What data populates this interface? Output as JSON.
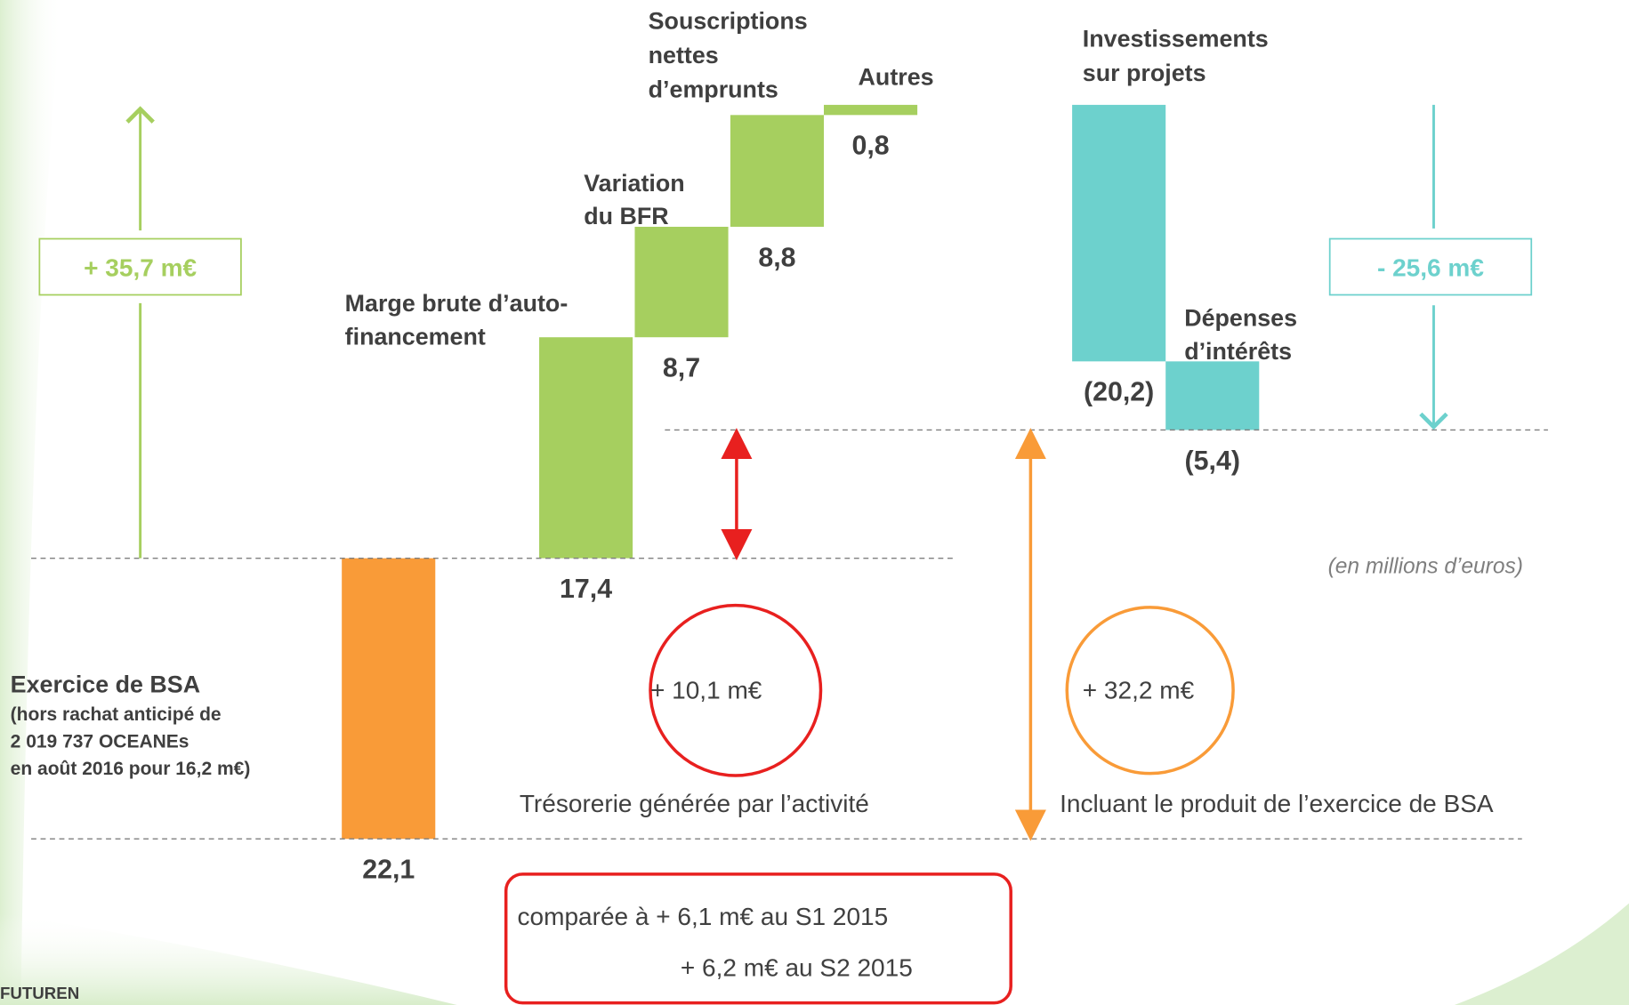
{
  "chart_data": {
    "type": "waterfall",
    "categories": [
      [
        "Exercice de BSA"
      ],
      [
        "Marge brute d’auto-",
        "financement"
      ],
      [
        "Variation",
        "du BFR"
      ],
      [
        "Souscriptions",
        "nettes",
        "d’emprunts"
      ],
      [
        "Autres"
      ],
      [
        "Investissements",
        "sur projets"
      ],
      [
        "Dépenses",
        "d’intérêts"
      ]
    ],
    "category_note": [
      "(hors rachat anticipé de",
      "2 019 737 OCEANEs",
      "en août 2016 pour 16,2 m€)"
    ],
    "values": [
      22.1,
      17.4,
      8.7,
      8.8,
      0.8,
      -20.2,
      -5.4
    ],
    "value_labels": [
      "22,1",
      "17,4",
      "8,7",
      "8,8",
      "0,8",
      "(20,2)",
      "(5,4)"
    ],
    "colors": [
      "#f99b38",
      "#a6cf5f",
      "#a6cf5f",
      "#a6cf5f",
      "#a6cf5f",
      "#6dd1cd",
      "#6dd1cd"
    ],
    "annotations": {
      "increase": "+ 35,7 m€",
      "decrease": "- 25,6 m€",
      "unit": "(en millions d’euros)",
      "activity_total": "+ 10,1 m€",
      "activity_label": "Trésorerie générée par l’activité",
      "overall_total": "+ 32,2 m€",
      "overall_label": "Incluant le produit de l’exercice de BSA",
      "comparison": [
        "comparée à + 6,1 m€ au S1 2015",
        "+ 6,2 m€ au S2 2015"
      ]
    },
    "footer": "FUTUREN"
  }
}
